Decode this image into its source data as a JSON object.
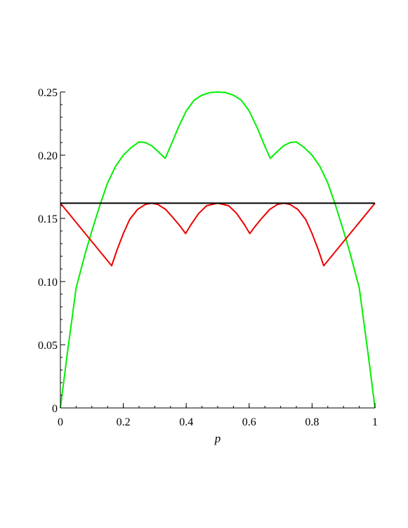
{
  "chart_data": {
    "type": "line",
    "title": "",
    "xlabel": "p",
    "ylabel": "",
    "xlim": [
      0,
      1
    ],
    "ylim": [
      0,
      0.25
    ],
    "grid": false,
    "legend": "none",
    "x_ticks": [
      0,
      0.2,
      0.4,
      0.6,
      0.8,
      1
    ],
    "x_tick_labels": [
      "0",
      "0.2",
      "0.4",
      "0.6",
      "0.8",
      "1"
    ],
    "y_ticks": [
      0,
      0.05,
      0.1,
      0.15,
      0.2,
      0.25
    ],
    "y_tick_labels": [
      "0",
      "0.05",
      "0.10",
      "0.15",
      "0.20",
      "0.25"
    ],
    "series": [
      {
        "color": "#00ee00",
        "points": [
          [
            0,
            0
          ],
          [
            0.02,
            0.0392
          ],
          [
            0.05,
            0.095
          ],
          [
            0.08,
            0.1232
          ],
          [
            0.1,
            0.14
          ],
          [
            0.125,
            0.16
          ],
          [
            0.15,
            0.178
          ],
          [
            0.175,
            0.191
          ],
          [
            0.2,
            0.2
          ],
          [
            0.225,
            0.206
          ],
          [
            0.25,
            0.2105
          ],
          [
            0.27,
            0.21
          ],
          [
            0.29,
            0.2075
          ],
          [
            0.31,
            0.203
          ],
          [
            0.333,
            0.1975
          ],
          [
            0.35,
            0.207
          ],
          [
            0.375,
            0.222
          ],
          [
            0.4,
            0.235
          ],
          [
            0.425,
            0.2435
          ],
          [
            0.45,
            0.2475
          ],
          [
            0.475,
            0.2495
          ],
          [
            0.5,
            0.25
          ],
          [
            0.525,
            0.2495
          ],
          [
            0.55,
            0.2475
          ],
          [
            0.575,
            0.2435
          ],
          [
            0.6,
            0.235
          ],
          [
            0.625,
            0.222
          ],
          [
            0.65,
            0.207
          ],
          [
            0.667,
            0.1975
          ],
          [
            0.69,
            0.203
          ],
          [
            0.71,
            0.2075
          ],
          [
            0.73,
            0.21
          ],
          [
            0.75,
            0.2105
          ],
          [
            0.775,
            0.206
          ],
          [
            0.8,
            0.2
          ],
          [
            0.825,
            0.191
          ],
          [
            0.85,
            0.178
          ],
          [
            0.875,
            0.16
          ],
          [
            0.9,
            0.14
          ],
          [
            0.92,
            0.1232
          ],
          [
            0.95,
            0.095
          ],
          [
            0.98,
            0.0392
          ],
          [
            1,
            0
          ]
        ]
      },
      {
        "color": "#ee0000",
        "points": [
          [
            0,
            0.162
          ],
          [
            0.163,
            0.1125
          ],
          [
            0.18,
            0.125
          ],
          [
            0.2,
            0.138
          ],
          [
            0.22,
            0.149
          ],
          [
            0.245,
            0.157
          ],
          [
            0.27,
            0.161
          ],
          [
            0.29,
            0.162
          ],
          [
            0.31,
            0.161
          ],
          [
            0.335,
            0.157
          ],
          [
            0.36,
            0.15
          ],
          [
            0.38,
            0.144
          ],
          [
            0.398,
            0.138
          ],
          [
            0.415,
            0.145
          ],
          [
            0.44,
            0.154
          ],
          [
            0.465,
            0.16
          ],
          [
            0.5,
            0.162
          ],
          [
            0.535,
            0.16
          ],
          [
            0.56,
            0.154
          ],
          [
            0.585,
            0.145
          ],
          [
            0.602,
            0.138
          ],
          [
            0.62,
            0.144
          ],
          [
            0.64,
            0.15
          ],
          [
            0.665,
            0.157
          ],
          [
            0.69,
            0.161
          ],
          [
            0.71,
            0.162
          ],
          [
            0.73,
            0.161
          ],
          [
            0.755,
            0.157
          ],
          [
            0.78,
            0.149
          ],
          [
            0.8,
            0.138
          ],
          [
            0.82,
            0.125
          ],
          [
            0.837,
            0.1125
          ],
          [
            1,
            0.162
          ]
        ]
      },
      {
        "color": "#000000",
        "points": [
          [
            0,
            0.162
          ],
          [
            1,
            0.162
          ]
        ]
      }
    ]
  }
}
